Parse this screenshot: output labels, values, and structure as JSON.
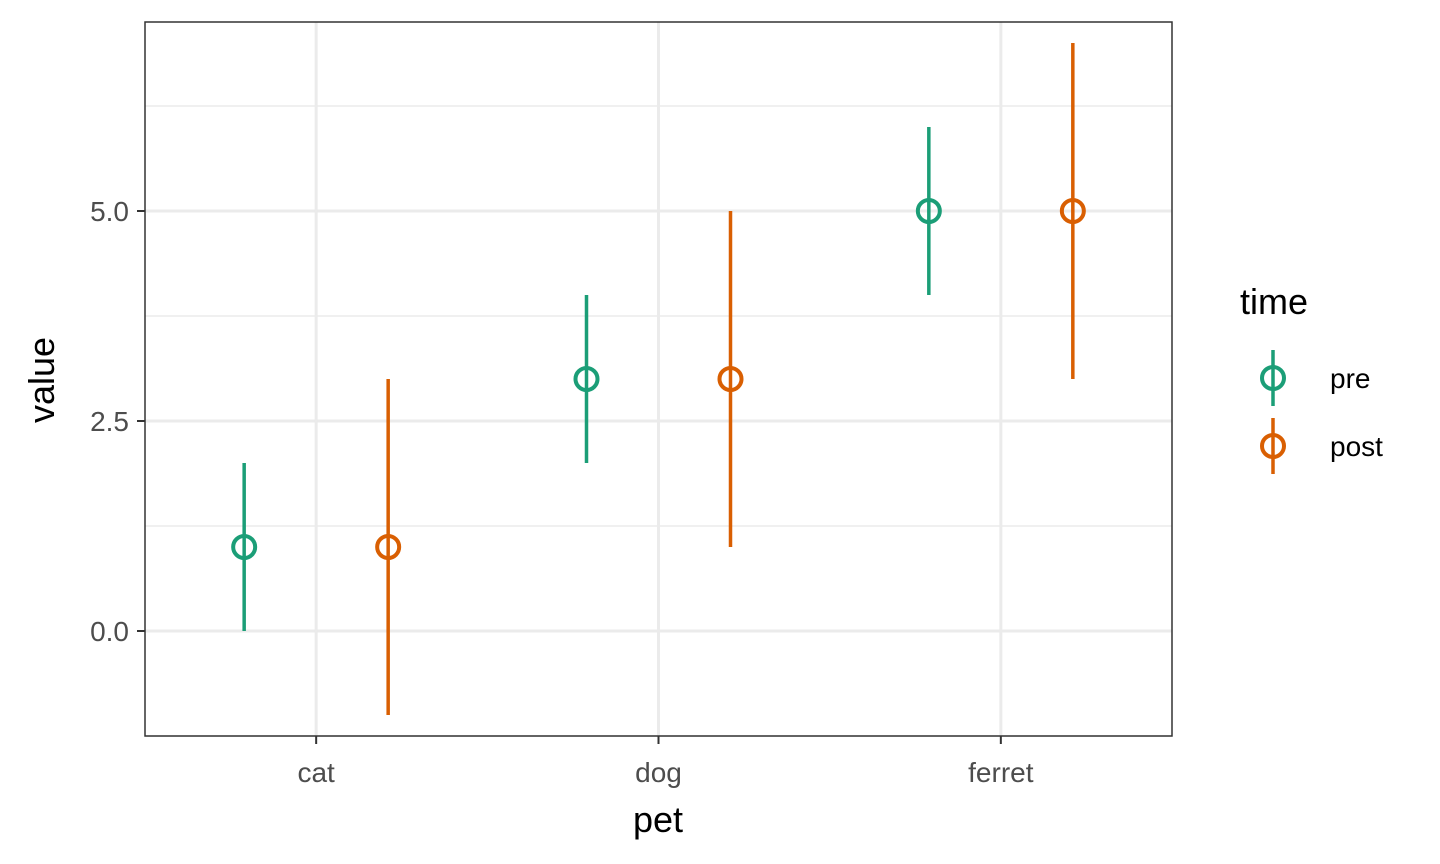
{
  "chart_data": {
    "type": "scatter",
    "subtype": "pointrange",
    "title": "",
    "xlabel": "pet",
    "ylabel": "value",
    "categories": [
      "cat",
      "dog",
      "ferret"
    ],
    "y_ticks": [
      0.0,
      2.5,
      5.0
    ],
    "y_tick_labels": [
      "0.0",
      "2.5",
      "5.0"
    ],
    "ylim": [
      -1.25,
      7.25
    ],
    "grid": true,
    "legend": {
      "title": "time",
      "position": "right"
    },
    "series": [
      {
        "name": "pre",
        "color": "#1B9E77",
        "values": [
          1,
          3,
          5
        ],
        "lower": [
          0,
          2,
          4
        ],
        "upper": [
          2,
          4,
          6
        ]
      },
      {
        "name": "post",
        "color": "#D95F02",
        "values": [
          1,
          3,
          5
        ],
        "lower": [
          -1,
          1,
          3
        ],
        "upper": [
          3,
          5,
          7
        ]
      }
    ]
  }
}
